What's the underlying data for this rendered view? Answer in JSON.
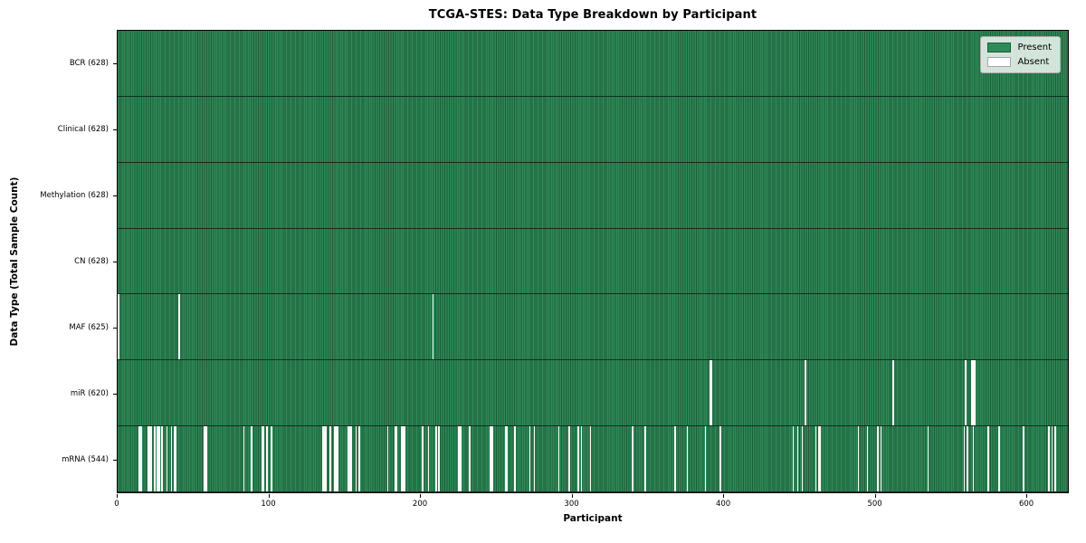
{
  "chart_data": {
    "type": "heatmap",
    "title": "TCGA-STES: Data Type Breakdown by Participant",
    "xlabel": "Participant",
    "ylabel": "Data Type (Total Sample Count)",
    "x_range": [
      0,
      628
    ],
    "x_ticks": [
      0,
      100,
      200,
      300,
      400,
      500,
      600
    ],
    "total_participants": 628,
    "legend_position": "upper right",
    "legend_items": [
      {
        "label": "Present",
        "color": "#2E8B57"
      },
      {
        "label": "Absent",
        "color": "#ffffff"
      }
    ],
    "rows": [
      {
        "name": "bcr",
        "label": "BCR (628)",
        "present_count": 628,
        "absent_participants": []
      },
      {
        "name": "clinical",
        "label": "Clinical (628)",
        "present_count": 628,
        "absent_participants": []
      },
      {
        "name": "methylation",
        "label": "Methylation (628)",
        "present_count": 628,
        "absent_participants": []
      },
      {
        "name": "cn",
        "label": "CN (628)",
        "present_count": 628,
        "absent_participants": []
      },
      {
        "name": "maf",
        "label": "MAF (625)",
        "present_count": 625,
        "absent_participants": [
          0,
          40,
          208
        ]
      },
      {
        "name": "mir",
        "label": "miR (620)",
        "present_count": 620,
        "absent_participants": [
          391,
          392,
          454,
          512,
          560,
          564,
          565,
          566
        ]
      },
      {
        "name": "mrna",
        "label": "mRNA (544)",
        "present_count": 544,
        "absent_participants": [
          14,
          15,
          20,
          21,
          22,
          24,
          26,
          27,
          29,
          32,
          35,
          37,
          38,
          57,
          58,
          83,
          88,
          95,
          96,
          98,
          101,
          135,
          136,
          137,
          140,
          143,
          144,
          145,
          152,
          153,
          154,
          157,
          159,
          178,
          183,
          184,
          187,
          188,
          189,
          201,
          205,
          210,
          212,
          225,
          226,
          232,
          246,
          247,
          256,
          257,
          262,
          272,
          275,
          291,
          298,
          304,
          306,
          312,
          340,
          348,
          368,
          376,
          388,
          398,
          446,
          449,
          452,
          461,
          463,
          464,
          489,
          495,
          502,
          504,
          535,
          559,
          561,
          565,
          575,
          582,
          598,
          615,
          617,
          619
        ]
      }
    ]
  }
}
